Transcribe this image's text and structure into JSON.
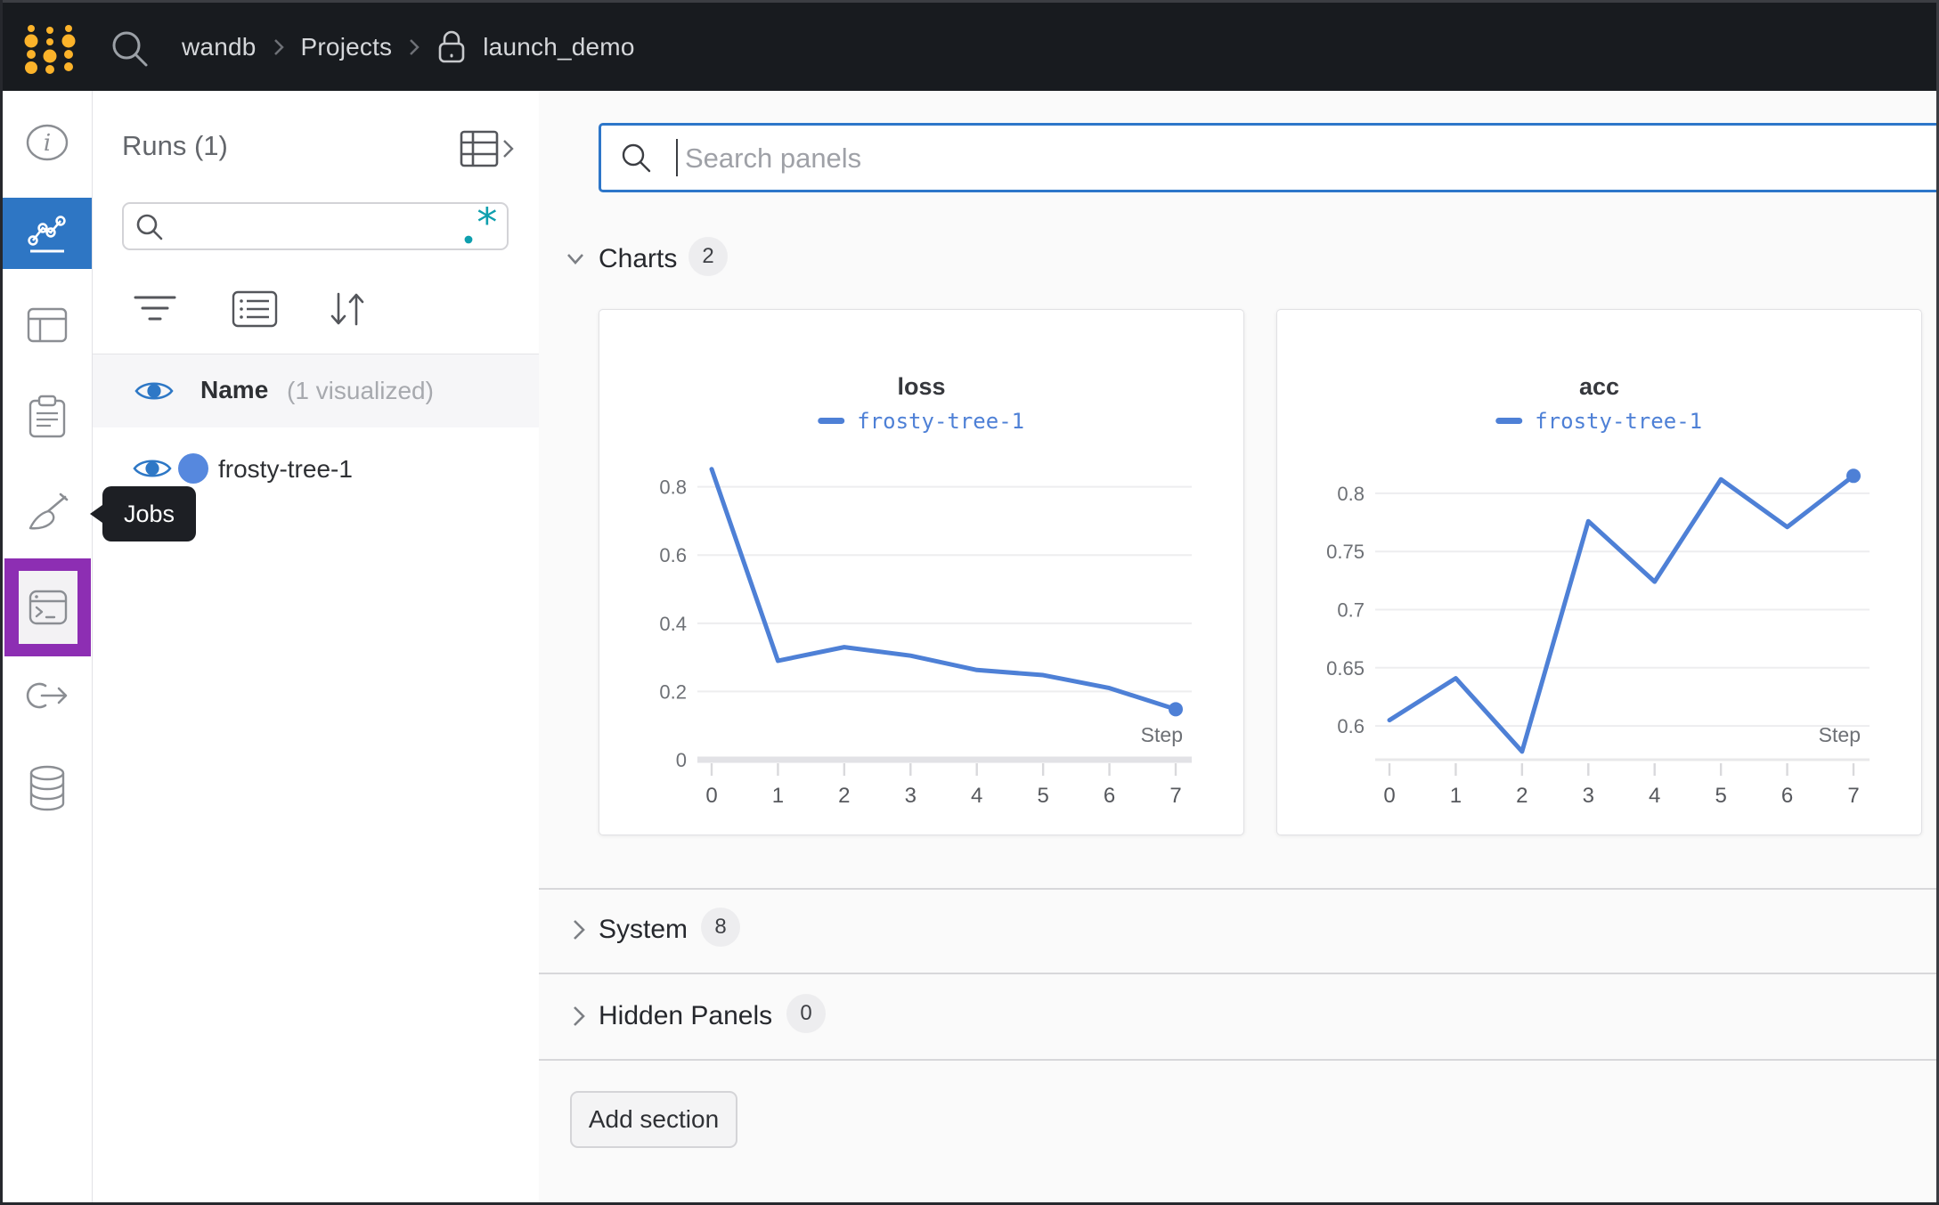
{
  "topbar": {
    "breadcrumb": {
      "team": "wandb",
      "section": "Projects",
      "project": "launch_demo"
    }
  },
  "sidebar": {
    "tooltip": "Jobs",
    "items": [
      {
        "id": "overview"
      },
      {
        "id": "workspace",
        "active": true
      },
      {
        "id": "table"
      },
      {
        "id": "reports"
      },
      {
        "id": "sweeps"
      },
      {
        "id": "jobs",
        "highlighted": true
      },
      {
        "id": "automations"
      },
      {
        "id": "artifacts"
      }
    ]
  },
  "runs_panel": {
    "title": "Runs (1)",
    "search_value": "",
    "name_header": "Name",
    "visualized_note": "(1 visualized)",
    "runs": [
      {
        "name": "frosty-tree-1",
        "color": "#5688de"
      }
    ]
  },
  "main": {
    "search_placeholder": "Search panels",
    "sections": [
      {
        "label": "Charts",
        "count": "2",
        "state": "expanded"
      },
      {
        "label": "System",
        "count": "8",
        "state": "collapsed"
      },
      {
        "label": "Hidden Panels",
        "count": "0",
        "state": "collapsed"
      }
    ],
    "add_section_label": "Add section"
  },
  "colors": {
    "accent_blue": "#2e76c4",
    "run_line_blue": "#4e80d6",
    "highlight_purple": "#8d2eb3",
    "logo_yellow": "#fcb32a",
    "regex_teal": "#0e9fae"
  },
  "chart_data": [
    {
      "type": "line",
      "title": "loss",
      "xlabel": "Step",
      "x": [
        0,
        1,
        2,
        3,
        4,
        5,
        6,
        7
      ],
      "series": [
        {
          "name": "frosty-tree-1",
          "color": "#4e80d6",
          "values": [
            0.852,
            0.29,
            0.33,
            0.305,
            0.263,
            0.248,
            0.21,
            0.148
          ]
        }
      ],
      "ylim": [
        0,
        0.88
      ],
      "yticks": [
        {
          "v": 0.8,
          "label": "0.8"
        },
        {
          "v": 0.6,
          "label": "0.6"
        },
        {
          "v": 0.4,
          "label": "0.4"
        },
        {
          "v": 0.2,
          "label": "0.2"
        },
        {
          "v": 0,
          "label": "0"
        }
      ],
      "baseline": "thick",
      "grid": true,
      "legend_position": "top",
      "end_dot": true
    },
    {
      "type": "line",
      "title": "acc",
      "xlabel": "Step",
      "x": [
        0,
        1,
        2,
        3,
        4,
        5,
        6,
        7
      ],
      "series": [
        {
          "name": "frosty-tree-1",
          "color": "#4e80d6",
          "values": [
            0.605,
            0.641,
            0.578,
            0.776,
            0.724,
            0.812,
            0.771,
            0.815
          ]
        }
      ],
      "ylim": [
        0.571,
        0.829
      ],
      "yticks": [
        {
          "v": 0.8,
          "label": "0.8"
        },
        {
          "v": 0.75,
          "label": "0.75"
        },
        {
          "v": 0.7,
          "label": "0.7"
        },
        {
          "v": 0.65,
          "label": "0.65"
        },
        {
          "v": 0.6,
          "label": "0.6"
        }
      ],
      "baseline": "thin",
      "grid": true,
      "legend_position": "top",
      "end_dot": true
    }
  ]
}
